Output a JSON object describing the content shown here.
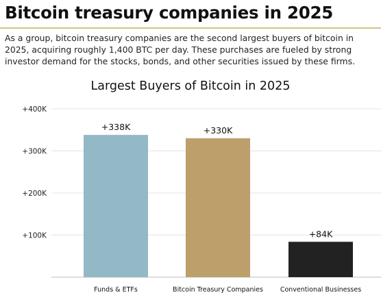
{
  "article": {
    "headline": "Bitcoin treasury companies in 2025",
    "intro": "As a group, bitcoin treasury companies are the second largest buyers of bitcoin in 2025, acquiring roughly 1,400 BTC per day. These purchases are fueled by strong investor demand for the stocks, bonds, and other securities issued by these firms."
  },
  "chart_data": {
    "type": "bar",
    "title": "Largest Buyers of Bitcoin in 2025",
    "categories": [
      "Funds & ETFs",
      "Bitcoin Treasury Companies",
      "Conventional Businesses"
    ],
    "values": [
      338000,
      330000,
      84000
    ],
    "data_labels": [
      "+338K",
      "+330K",
      "+84K"
    ],
    "bar_colors": [
      "#93b8c6",
      "#bd9f6c",
      "#222222"
    ],
    "ylim": [
      0,
      400000
    ],
    "yticks": [
      100000,
      200000,
      300000,
      400000
    ],
    "ytick_labels": [
      "+100K",
      "+200K",
      "+300K",
      "+400K"
    ],
    "grid": true,
    "xlabel": "",
    "ylabel": ""
  }
}
